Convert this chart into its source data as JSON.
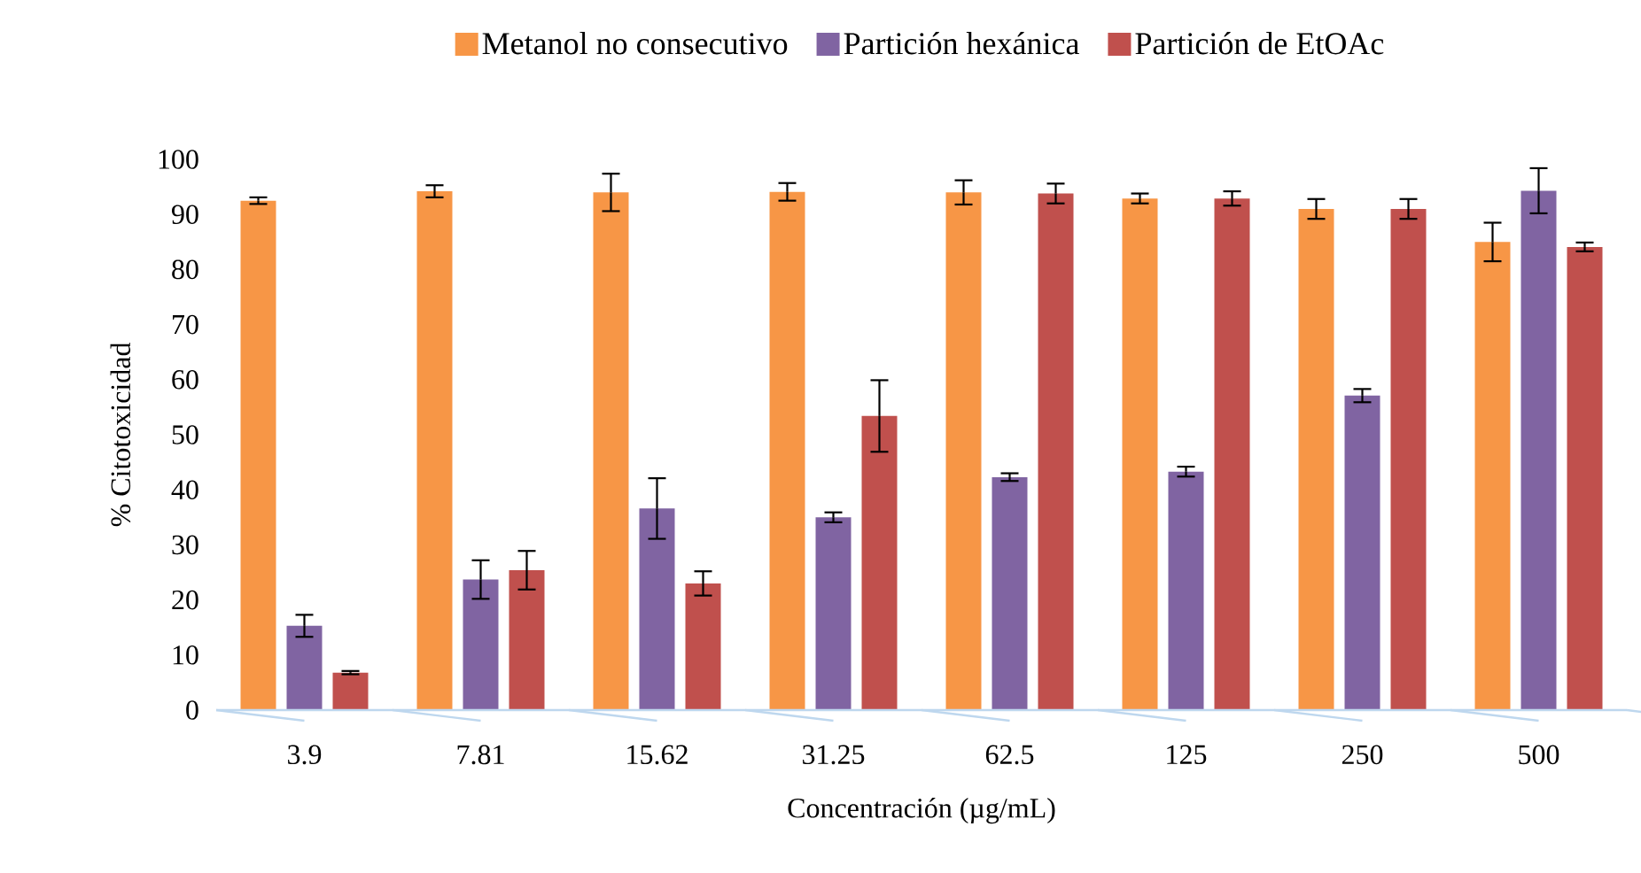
{
  "chart_data": {
    "type": "bar",
    "xlabel": "Concentración (µg/mL)",
    "ylabel": "% Citotoxicidad",
    "categories": [
      "3.9",
      "7.81",
      "15.62",
      "31.25",
      "62.5",
      "125",
      "250",
      "500"
    ],
    "ylim": [
      0,
      100
    ],
    "yticks": [
      0,
      10,
      20,
      30,
      40,
      50,
      60,
      70,
      80,
      90,
      100
    ],
    "grid": false,
    "legend": "top",
    "series": [
      {
        "name": "Metanol no consecutivo",
        "color": "#f79646",
        "values": [
          92.5,
          94.2,
          94.0,
          94.1,
          94.0,
          92.9,
          91.0,
          85.0
        ],
        "errors": [
          0.6,
          1.1,
          3.4,
          1.6,
          2.2,
          0.9,
          1.8,
          3.5
        ]
      },
      {
        "name": "Partición hexánica",
        "color": "#8064a2",
        "values": [
          15.3,
          23.7,
          36.6,
          35.0,
          42.3,
          43.3,
          57.1,
          94.3
        ],
        "errors": [
          2.0,
          3.5,
          5.5,
          0.9,
          0.7,
          0.9,
          1.2,
          4.1
        ]
      },
      {
        "name": "Partición de EtOAc",
        "color": "#c0504d",
        "values": [
          6.8,
          25.4,
          23.0,
          53.4,
          93.8,
          92.9,
          91.0,
          84.1
        ],
        "errors": [
          0.3,
          3.5,
          2.2,
          6.5,
          1.8,
          1.3,
          1.8,
          0.8
        ]
      }
    ]
  }
}
